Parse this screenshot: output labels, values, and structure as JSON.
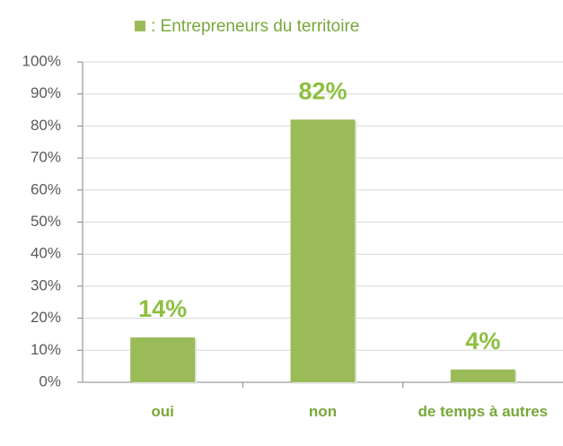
{
  "chart_data": {
    "type": "bar",
    "categories": [
      "oui",
      "non",
      "de temps à autres"
    ],
    "series": [
      {
        "name": ": Entrepreneurs du territoire",
        "color": "#9bbb59",
        "values": [
          14,
          82,
          4
        ],
        "value_labels": [
          "14%",
          "82%",
          "4%"
        ]
      }
    ],
    "ylim": [
      0,
      100
    ],
    "yticks": [
      {
        "value": 0,
        "label": "0%"
      },
      {
        "value": 10,
        "label": "10%"
      },
      {
        "value": 20,
        "label": "20%"
      },
      {
        "value": 30,
        "label": "30%"
      },
      {
        "value": 40,
        "label": "40%"
      },
      {
        "value": 50,
        "label": "50%"
      },
      {
        "value": 60,
        "label": "60%"
      },
      {
        "value": 70,
        "label": "70%"
      },
      {
        "value": 80,
        "label": "80%"
      },
      {
        "value": 90,
        "label": "90%"
      },
      {
        "value": 100,
        "label": "100%"
      }
    ],
    "grid": true,
    "legend": "top"
  }
}
